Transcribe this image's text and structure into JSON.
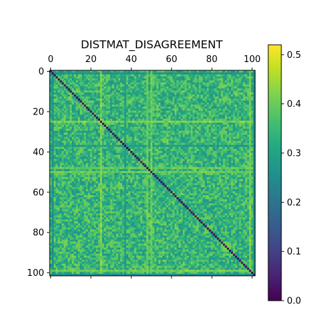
{
  "chart_data": {
    "type": "heatmap",
    "title": "DISTMAT_DISAGREEMENT",
    "matrix_size": 102,
    "x_ticks": [
      0,
      20,
      40,
      60,
      80,
      100
    ],
    "y_ticks": [
      0,
      20,
      40,
      60,
      80,
      100
    ],
    "x_tick_position": "top-and-bottom",
    "diagonal_value": 0.0,
    "typical_value": 0.34,
    "value_range": [
      0.0,
      0.52
    ],
    "colormap": "viridis",
    "bright_rows_cols": [
      {
        "index": 25,
        "value": 0.45
      },
      {
        "index": 48,
        "value": 0.42
      },
      {
        "index": 50,
        "value": 0.43
      },
      {
        "index": 99,
        "value": 0.44
      }
    ],
    "dark_rows_cols": [
      {
        "index": 1,
        "value": 0.22
      },
      {
        "index": 37,
        "value": 0.26
      },
      {
        "index": 101,
        "value": 0.2
      }
    ],
    "colorbar": {
      "range": [
        0.0,
        0.52
      ],
      "ticks": [
        "0.0",
        "0.1",
        "0.2",
        "0.3",
        "0.4",
        "0.5"
      ],
      "tick_values": [
        0.0,
        0.1,
        0.2,
        0.3,
        0.4,
        0.5
      ]
    },
    "grid": false,
    "legend": "none"
  }
}
